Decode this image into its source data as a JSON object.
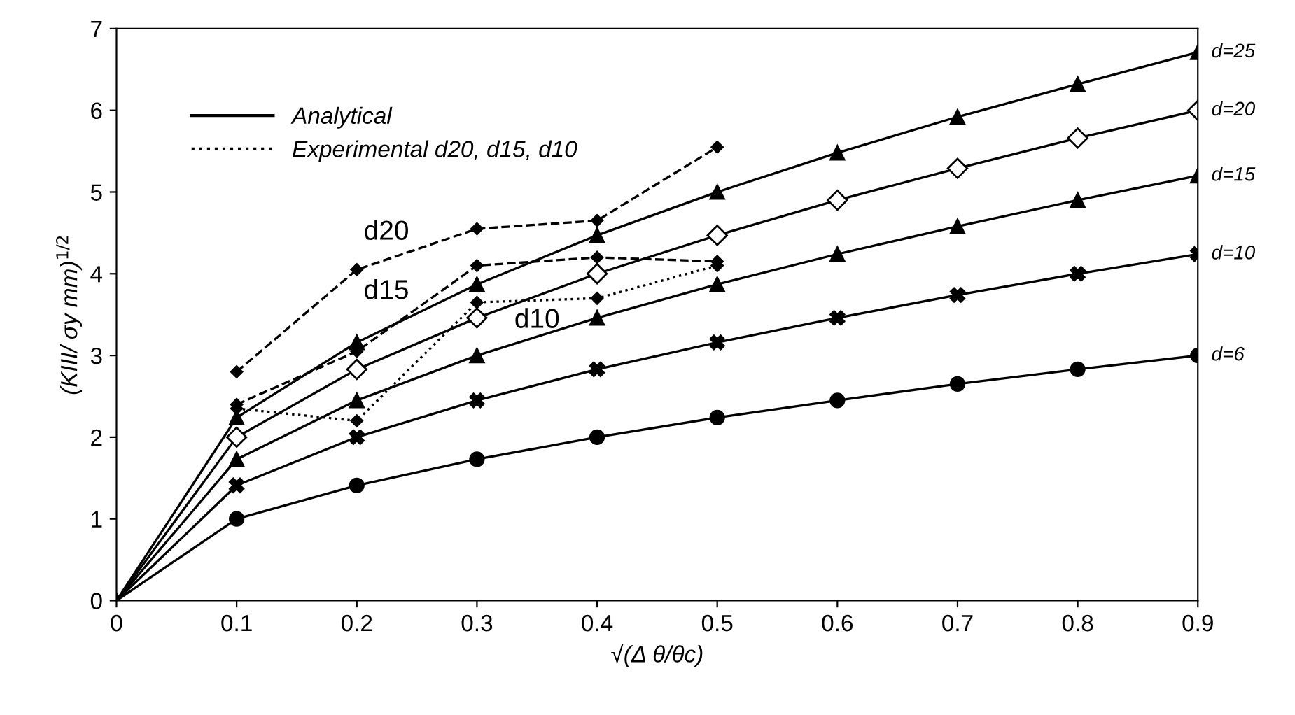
{
  "chart_data": {
    "type": "line",
    "xlabel": "√(Δ θ/θc)",
    "ylabel": "(KIII/ σy mm)$^{1/2}$",
    "x": [
      0,
      0.1,
      0.2,
      0.3,
      0.4,
      0.5,
      0.6,
      0.7,
      0.8,
      0.9
    ],
    "series": [
      {
        "name": "d=25",
        "color": "#000000",
        "marker": "triangle",
        "line_style": "solid",
        "values": [
          0,
          2.24,
          3.16,
          3.87,
          4.47,
          5.0,
          5.48,
          5.92,
          6.32,
          6.71
        ]
      },
      {
        "name": "d=20",
        "color": "#000000",
        "marker": "diamond",
        "line_style": "solid",
        "values": [
          0,
          2.0,
          2.83,
          3.46,
          4.0,
          4.47,
          4.9,
          5.29,
          5.66,
          6.0
        ]
      },
      {
        "name": "d=15",
        "color": "#000000",
        "marker": "triangle",
        "line_style": "solid",
        "values": [
          0,
          1.73,
          2.45,
          3.0,
          3.46,
          3.87,
          4.24,
          4.58,
          4.9,
          5.2
        ]
      },
      {
        "name": "d=10",
        "color": "#000000",
        "marker": "cross",
        "line_style": "solid",
        "values": [
          0,
          1.41,
          2.0,
          2.45,
          2.83,
          3.16,
          3.46,
          3.74,
          4.0,
          4.24
        ]
      },
      {
        "name": "d=6",
        "color": "#000000",
        "marker": "circle",
        "line_style": "solid",
        "values": [
          0,
          1.0,
          1.41,
          1.73,
          2.0,
          2.24,
          2.45,
          2.65,
          2.83,
          3.0
        ]
      },
      {
        "name": "d20",
        "color": "#000000",
        "marker": "diamond",
        "line_style": "dashed",
        "x": [
          0.1,
          0.2,
          0.3,
          0.4,
          0.5
        ],
        "values": [
          2.8,
          4.05,
          4.55,
          4.65,
          5.55
        ]
      },
      {
        "name": "d15",
        "color": "#000000",
        "marker": "diamond",
        "line_style": "dashed",
        "x": [
          0.1,
          0.2,
          0.3,
          0.4,
          0.5
        ],
        "values": [
          2.4,
          3.05,
          4.1,
          4.2,
          4.15
        ]
      },
      {
        "name": "d10",
        "color": "#000000",
        "marker": "diamond",
        "line_style": "dotted",
        "x": [
          0.1,
          0.2,
          0.3,
          0.4,
          0.5
        ],
        "values": [
          2.35,
          2.2,
          3.65,
          3.7,
          4.1
        ]
      }
    ],
    "annotations": [
      "Analytical",
      "Experimental d20, d15, d10"
    ],
    "xlim": [
      0,
      0.9
    ],
    "ylim": [
      0,
      7
    ],
    "xticks": [
      0,
      0.1,
      0.2,
      0.3,
      0.4,
      0.5,
      0.6,
      0.7,
      0.8,
      0.9
    ],
    "yticks": [
      0,
      1,
      2,
      3,
      4,
      5,
      6,
      7
    ],
    "grid": false
  }
}
